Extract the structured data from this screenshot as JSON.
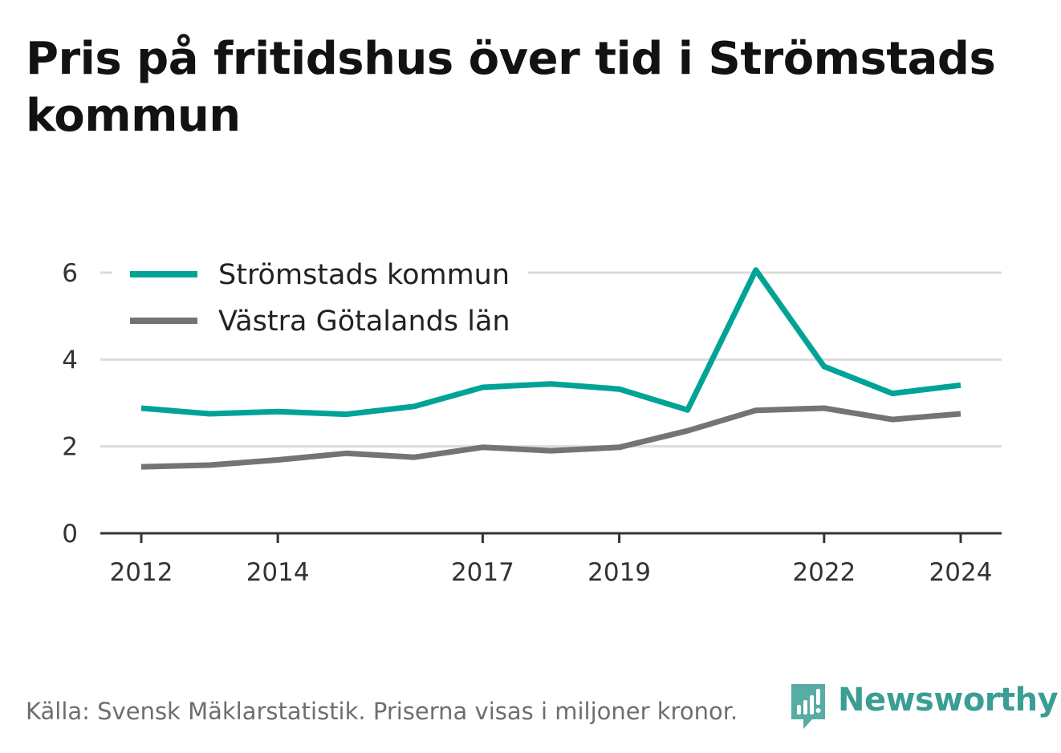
{
  "title": "Pris på fritidshus över tid i Strömstads kommun",
  "source": "Källa: Svensk Mäklarstatistik. Priserna visas i miljoner kronor.",
  "brand": {
    "name": "Newsworthy",
    "color": "#3a9e94",
    "icon": "bar-chart-speech-bubble-icon"
  },
  "chart_data": {
    "type": "line",
    "x": [
      2012,
      2013,
      2014,
      2015,
      2016,
      2017,
      2018,
      2019,
      2020,
      2021,
      2022,
      2023,
      2024
    ],
    "x_ticks": [
      "2012",
      "2014",
      "2017",
      "2019",
      "2022",
      "2024"
    ],
    "y_ticks": [
      "0",
      "2",
      "4",
      "6"
    ],
    "ylim": [
      0,
      6
    ],
    "grid": true,
    "legend_position": "top-left",
    "series": [
      {
        "name": "Strömstads kommun",
        "color": "#00a396",
        "values": [
          2.88,
          2.75,
          2.8,
          2.74,
          2.92,
          3.36,
          3.44,
          3.32,
          2.84,
          6.06,
          3.84,
          3.22,
          3.41
        ]
      },
      {
        "name": "Västra Götalands län",
        "color": "#737378",
        "values": [
          1.53,
          1.57,
          1.69,
          1.84,
          1.75,
          1.98,
          1.9,
          1.98,
          2.36,
          2.83,
          2.88,
          2.62,
          2.75
        ]
      }
    ]
  }
}
